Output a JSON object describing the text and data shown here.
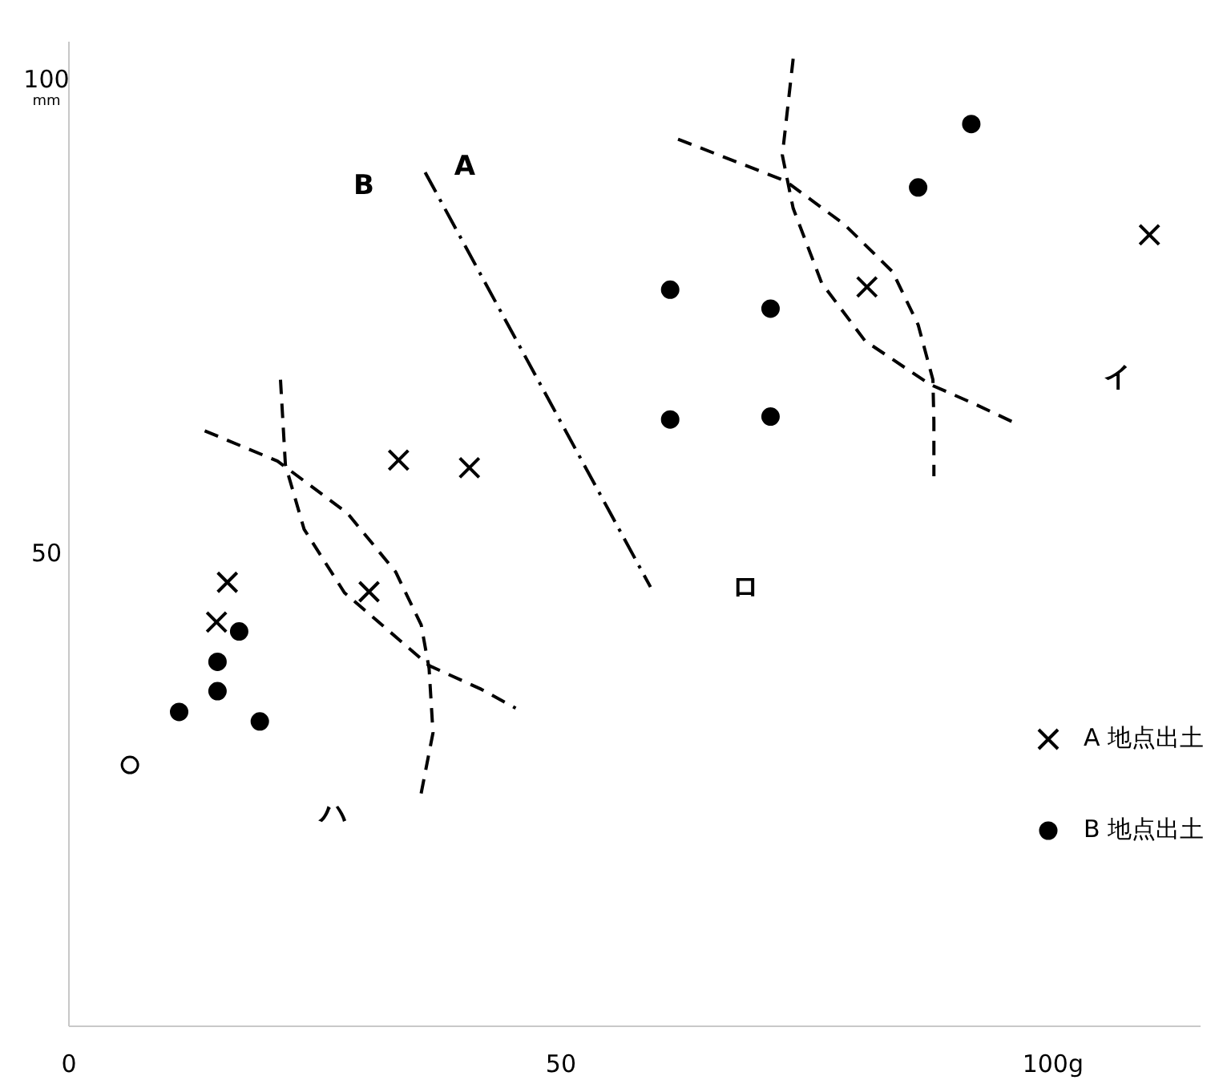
{
  "chart_data": {
    "type": "scatter",
    "xlim": [
      0,
      115
    ],
    "xticks": [
      0,
      50,
      {
        "value": 100,
        "label": "100g"
      }
    ],
    "ylim": [
      0,
      104
    ],
    "yticks": [
      50,
      {
        "value": 100,
        "label": "100$_{mm}$"
      }
    ],
    "grid": false,
    "legend": "bottom right",
    "series": [
      {
        "name": "A 地点出土",
        "color": "#000000",
        "marker": "cross",
        "x": [
          33.5,
          40.7,
          16.1,
          15.0,
          30.5,
          81.1,
          109.8
        ],
        "values": [
          59.8,
          59.0,
          46.9,
          42.7,
          45.9,
          78.1,
          83.6
        ]
      },
      {
        "name": "B 地点出土",
        "color": "#000000",
        "marker": "circle",
        "x": [
          17.3,
          15.1,
          15.1,
          11.2,
          19.4,
          91.7,
          86.3,
          61.1,
          71.3,
          61.1,
          71.3
        ],
        "values": [
          41.7,
          38.5,
          35.4,
          33.2,
          32.2,
          95.3,
          88.6,
          77.8,
          75.8,
          64.1,
          64.4
        ]
      },
      {
        "color": "#ffffff",
        "marker": "circle",
        "x": [
          6.2
        ],
        "values": [
          27.6
        ]
      },
      {
        "type": "line",
        "color": "#000000",
        "line_style": "dashdot",
        "marker": "none",
        "x": [
          36.2,
          59.1
        ],
        "values": [
          90.2,
          46.4
        ]
      },
      {
        "type": "line",
        "color": "#000000",
        "line_style": "dashed",
        "marker": "none",
        "x": [
          13.8,
          21.2,
          28.3,
          33.2,
          35.8,
          36.6,
          37.0,
          35.7
        ],
        "values": [
          62.9,
          59.7,
          54.2,
          48.0,
          42.4,
          37.8,
          31.0,
          24.1
        ]
      },
      {
        "type": "line",
        "color": "#000000",
        "line_style": "dashed",
        "marker": "none",
        "x": [
          21.5,
          22.0,
          23.9,
          28.0,
          33.7,
          36.6,
          41.9,
          45.4
        ],
        "values": [
          68.3,
          59.3,
          52.5,
          45.8,
          40.7,
          38.1,
          35.6,
          33.6
        ]
      },
      {
        "type": "line",
        "color": "#000000",
        "line_style": "dashed",
        "marker": "none",
        "x": [
          61.9,
          72.8,
          78.8,
          83.7,
          86.3,
          87.8,
          87.9,
          87.9
        ],
        "values": [
          93.7,
          89.3,
          84.7,
          79.7,
          74.1,
          68.3,
          63.9,
          58.1
        ]
      },
      {
        "type": "line",
        "color": "#000000",
        "line_style": "dashed",
        "marker": "none",
        "x": [
          73.6,
          72.5,
          73.6,
          76.5,
          80.9,
          87.5,
          91.9,
          96.4
        ],
        "values": [
          102.2,
          92.0,
          86.4,
          78.5,
          72.4,
          67.8,
          65.8,
          63.6
        ]
      }
    ],
    "annotations": [
      "A",
      "B",
      "イ",
      "ロ",
      "ハ"
    ]
  }
}
